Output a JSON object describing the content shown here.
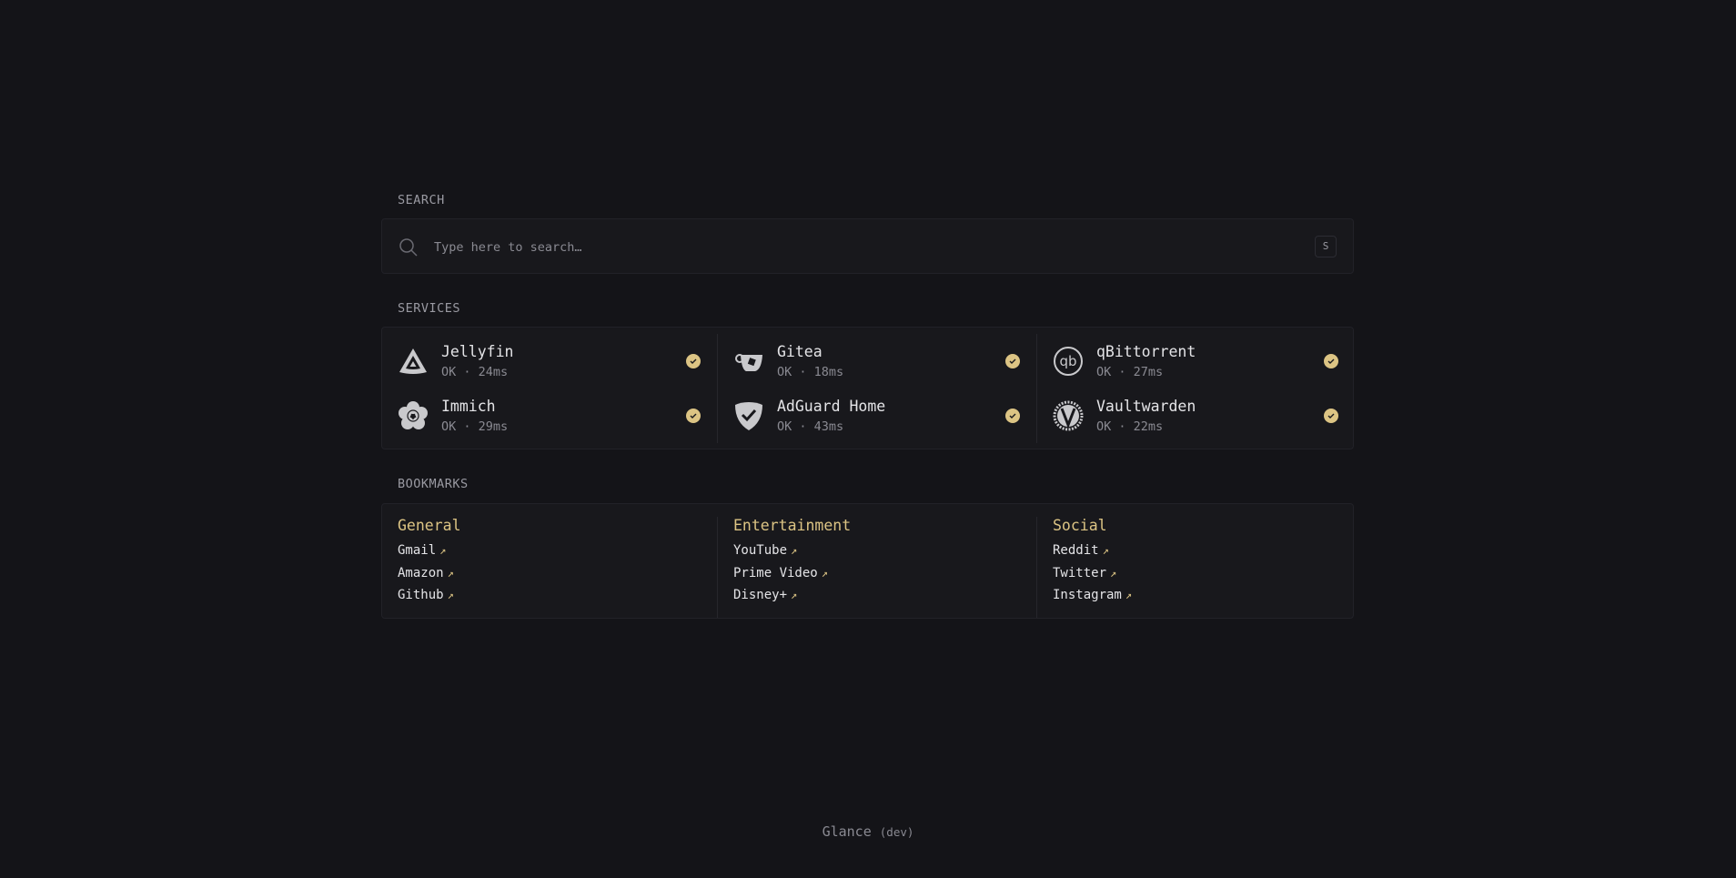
{
  "accent": "#dcc484",
  "search": {
    "label": "SEARCH",
    "placeholder": "Type here to search…",
    "shortcut": "S",
    "icon": "search-icon"
  },
  "services": {
    "label": "SERVICES",
    "items": [
      {
        "name": "Jellyfin",
        "status": "OK",
        "latency": "24ms",
        "icon": "jellyfin-icon"
      },
      {
        "name": "Gitea",
        "status": "OK",
        "latency": "18ms",
        "icon": "gitea-icon"
      },
      {
        "name": "qBittorrent",
        "status": "OK",
        "latency": "27ms",
        "icon": "qbittorrent-icon"
      },
      {
        "name": "Immich",
        "status": "OK",
        "latency": "29ms",
        "icon": "immich-icon"
      },
      {
        "name": "AdGuard Home",
        "status": "OK",
        "latency": "43ms",
        "icon": "adguard-icon"
      },
      {
        "name": "Vaultwarden",
        "status": "OK",
        "latency": "22ms",
        "icon": "vaultwarden-icon"
      }
    ]
  },
  "bookmarks": {
    "label": "BOOKMARKS",
    "groups": [
      {
        "title": "General",
        "links": [
          "Gmail",
          "Amazon",
          "Github"
        ]
      },
      {
        "title": "Entertainment",
        "links": [
          "YouTube",
          "Prime Video",
          "Disney+"
        ]
      },
      {
        "title": "Social",
        "links": [
          "Reddit",
          "Twitter",
          "Instagram"
        ]
      }
    ]
  },
  "footer": {
    "app": "Glance",
    "version": "(dev)"
  }
}
